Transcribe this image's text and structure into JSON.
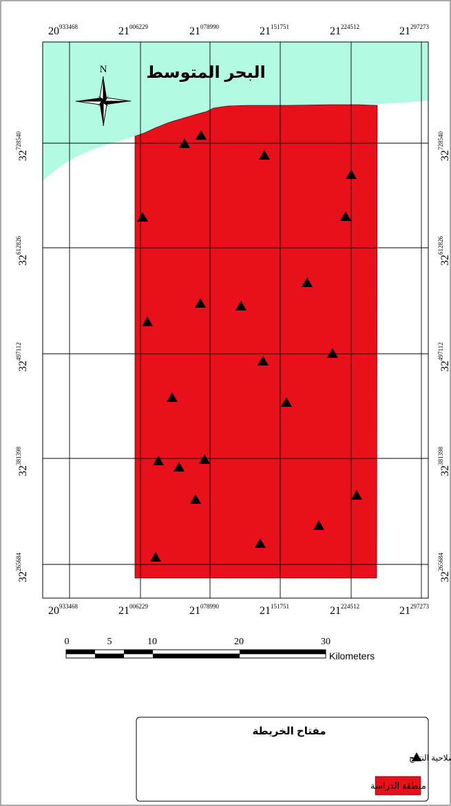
{
  "sea_label": "البحر المتوسط",
  "north_label": "N",
  "longitudes": [
    {
      "base": "20",
      "sup": "933468"
    },
    {
      "base": "21",
      "sup": "006229"
    },
    {
      "base": "21",
      "sup": "078990"
    },
    {
      "base": "21",
      "sup": "151751"
    },
    {
      "base": "21",
      "sup": "224512"
    },
    {
      "base": "21",
      "sup": "297273"
    }
  ],
  "latitudes": [
    {
      "base": "32",
      "sup": "728540"
    },
    {
      "base": "32",
      "sup": "612826"
    },
    {
      "base": "32",
      "sup": "497112"
    },
    {
      "base": "32",
      "sup": "381398"
    },
    {
      "base": "32",
      "sup": "265684"
    }
  ],
  "scale_bar": {
    "ticks": [
      "0",
      "5",
      "10",
      "20",
      "30"
    ],
    "unit": "Kilometers"
  },
  "legend": {
    "title": "مفتاح الخريطة",
    "items": [
      {
        "symbol": "triangle",
        "label": "قطاعات التربة الممثلة المستخدمة في تحديد صلاحية النتائج"
      },
      {
        "symbol": "red-box",
        "label": "منطقة الدراسة"
      }
    ]
  },
  "colors": {
    "sea": "#b3fae3",
    "study_area": "#e8101a",
    "grid": "#000000"
  },
  "icons": [
    "north-arrow-icon",
    "triangle-marker-icon"
  ]
}
